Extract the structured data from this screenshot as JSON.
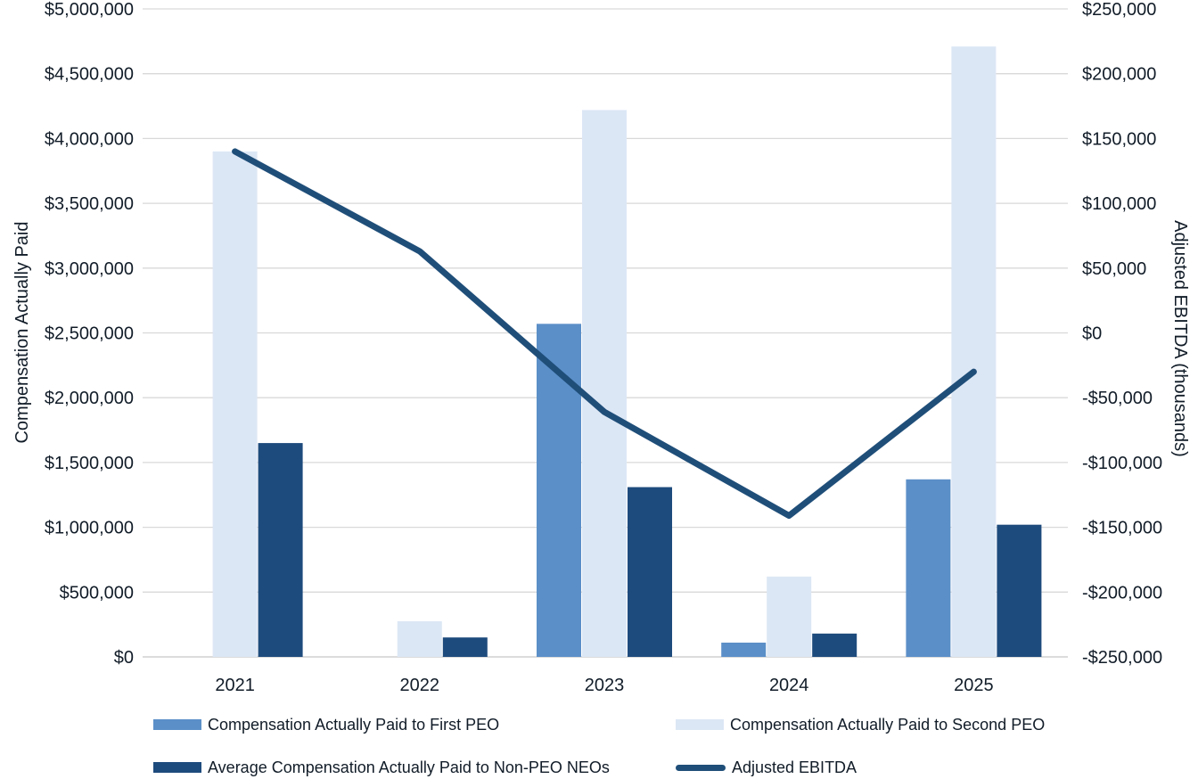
{
  "chart_data": {
    "type": "bar",
    "subtype": "combo-clustered-bar-and-line",
    "categories": [
      "2021",
      "2022",
      "2023",
      "2024",
      "2025"
    ],
    "bar_series": [
      {
        "name": "Compensation Actually Paid to First PEO",
        "color": "#5b8fc8",
        "axis": "left",
        "values": [
          0,
          0,
          2570000,
          110000,
          1370000
        ]
      },
      {
        "name": "Compensation Actually Paid to Second PEO",
        "color": "#dce7f5",
        "axis": "left",
        "values": [
          3900000,
          275000,
          4220000,
          620000,
          4710000
        ]
      },
      {
        "name": "Average Compensation Actually Paid to Non-PEO NEOs",
        "color": "#1e4b7d",
        "axis": "left",
        "values": [
          1650000,
          150000,
          1310000,
          180000,
          1020000
        ]
      }
    ],
    "line_series": {
      "name": "Adjusted EBITDA",
      "color": "#1f4e79",
      "axis": "right",
      "values": [
        140000,
        63000,
        -61000,
        -141000,
        -30000
      ]
    },
    "left_axis": {
      "title": "Compensation Actually Paid",
      "min": 0,
      "max": 5000000,
      "step": 500000,
      "tick_format": "$#,##0"
    },
    "right_axis": {
      "title": "Adjusted EBITDA (thousands)",
      "min": -250000,
      "max": 250000,
      "step": 50000,
      "tick_format": "$#,##0"
    },
    "grid": true,
    "gridline_color": "#d9d9d9",
    "baseline_color": "#c6c6c6",
    "text_color": "#111c28",
    "legend_position": "bottom"
  }
}
